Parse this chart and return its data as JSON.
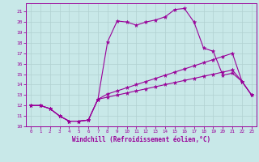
{
  "xlabel": "Windchill (Refroidissement éolien,°C)",
  "xlim": [
    -0.5,
    23.5
  ],
  "ylim": [
    10,
    21.8
  ],
  "yticks": [
    10,
    11,
    12,
    13,
    14,
    15,
    16,
    17,
    18,
    19,
    20,
    21
  ],
  "xticks": [
    0,
    1,
    2,
    3,
    4,
    5,
    6,
    7,
    8,
    9,
    10,
    11,
    12,
    13,
    14,
    15,
    16,
    17,
    18,
    19,
    20,
    21,
    22,
    23
  ],
  "background_color": "#c8e8e8",
  "grid_color": "#b0d0d0",
  "line_color": "#990099",
  "line1_y": [
    12.0,
    12.0,
    11.7,
    11.0,
    10.5,
    10.5,
    10.6,
    12.6,
    18.1,
    20.1,
    20.0,
    19.7,
    20.0,
    20.2,
    20.5,
    21.2,
    21.3,
    20.0,
    17.5,
    17.2,
    14.9,
    15.1,
    14.3,
    13.0
  ],
  "line2_y": [
    12.0,
    12.0,
    11.7,
    11.0,
    10.5,
    10.5,
    10.6,
    12.6,
    13.1,
    13.4,
    13.7,
    14.0,
    14.3,
    14.6,
    14.9,
    15.2,
    15.5,
    15.8,
    16.1,
    16.4,
    16.7,
    17.0,
    14.3,
    13.0
  ],
  "line3_y": [
    12.0,
    12.0,
    11.7,
    11.0,
    10.5,
    10.5,
    10.6,
    12.6,
    12.8,
    13.0,
    13.2,
    13.4,
    13.6,
    13.8,
    14.0,
    14.2,
    14.4,
    14.6,
    14.8,
    15.0,
    15.2,
    15.4,
    14.3,
    13.0
  ]
}
